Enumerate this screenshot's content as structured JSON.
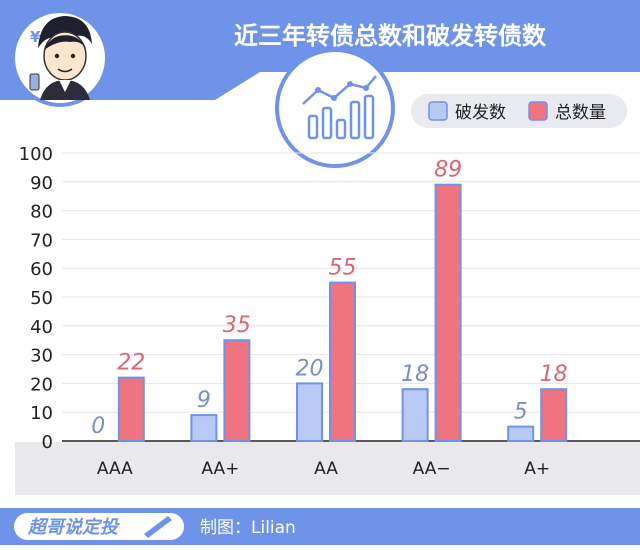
{
  "header": {
    "title": "近三年转债总数和破发转债数"
  },
  "legend": [
    {
      "label": "破发数",
      "color": "#b9c9f6"
    },
    {
      "label": "总数量",
      "color": "#f07480"
    }
  ],
  "footer": {
    "brand": "超哥说定投",
    "credit": "制图：Lilian"
  },
  "colors": {
    "accent": "#6f93e8",
    "bar_blue": "#b9c9f6",
    "bar_red": "#f07480",
    "label_blue": "#7b8fc0",
    "label_red": "#de6470"
  },
  "icons": {
    "avatar": "cartoon-avatar-icon",
    "chart_badge": "bar-line-chart-icon"
  },
  "chart_data": {
    "type": "bar",
    "categories": [
      "AAA",
      "AA+",
      "AA",
      "AA−",
      "A+"
    ],
    "series": [
      {
        "name": "破发数",
        "values": [
          0,
          9,
          20,
          18,
          5
        ]
      },
      {
        "name": "总数量",
        "values": [
          22,
          35,
          55,
          89,
          18
        ]
      }
    ],
    "yticks": [
      "0",
      "10",
      "20",
      "30",
      "40",
      "50",
      "60",
      "70",
      "80",
      "90",
      "100"
    ],
    "ylim": [
      0,
      100
    ],
    "grid": true,
    "legend_position": "top-right",
    "title": "近三年转债总数和破发转债数",
    "xlabel": "",
    "ylabel": ""
  }
}
